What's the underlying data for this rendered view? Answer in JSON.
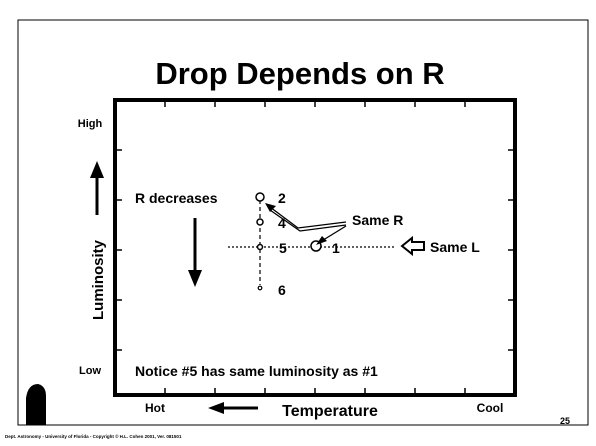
{
  "slide": {
    "title": "Drop Depends on R",
    "y_axis": {
      "label": "Luminosity",
      "high": "High",
      "low": "Low"
    },
    "x_axis": {
      "label": "Temperature",
      "hot": "Hot",
      "cool": "Cool"
    },
    "points": [
      {
        "label": "2"
      },
      {
        "label": "4"
      },
      {
        "label": "5"
      },
      {
        "label": "1"
      },
      {
        "label": "6"
      }
    ],
    "annotations": {
      "r_decreases": "R decreases",
      "same_r": "Same R",
      "same_l": "Same L",
      "notice": "Notice #5 has same luminosity as #1"
    },
    "footer": "Dept. Astronomy   - University of Florida  - Copyright © H.L. Cohen 2001, Ver. 081501",
    "page_number": "25"
  }
}
